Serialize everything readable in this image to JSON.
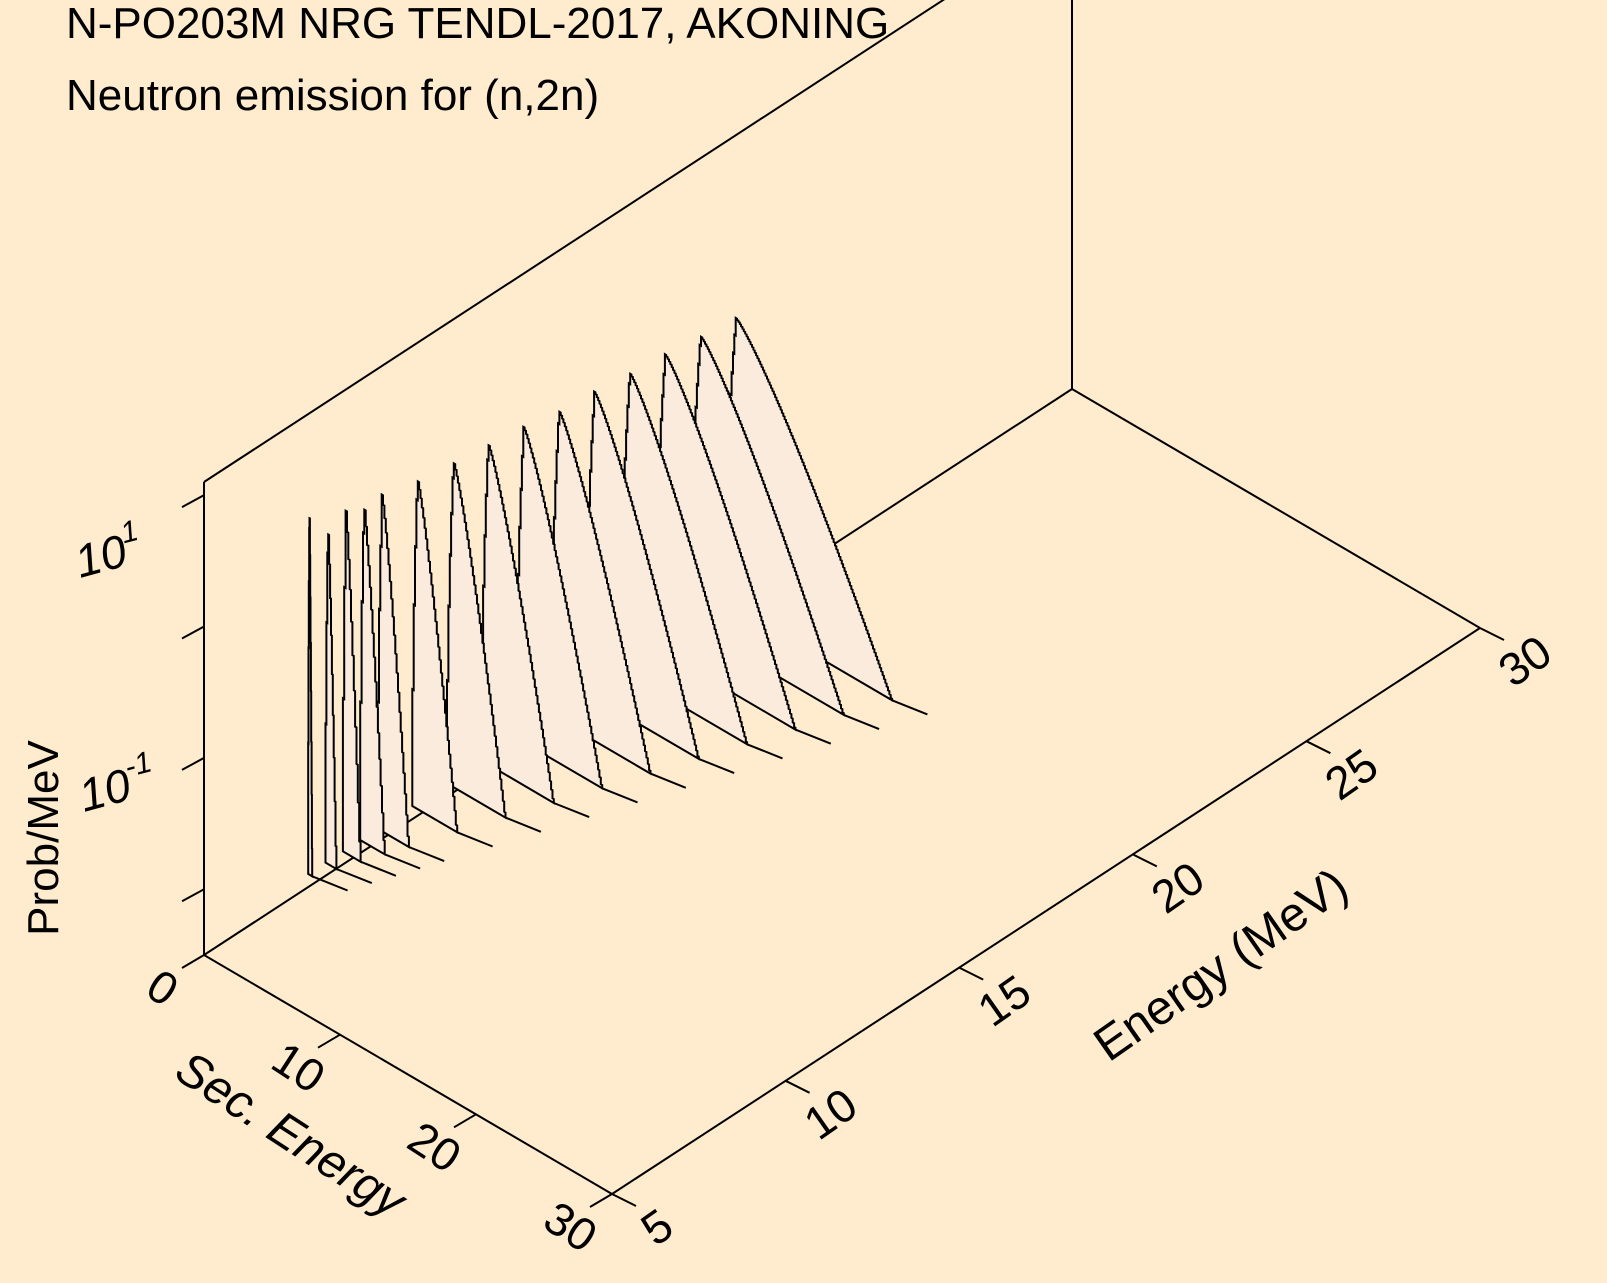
{
  "chart_data": {
    "type": "area",
    "title": "N-PO203M NRG TENDL-2017, AKONING",
    "subtitle": "Neutron emission for (n,2n)",
    "zlabel": "Prob/MeV",
    "zscale": "log",
    "ztick_labels": [
      {
        "base": "10",
        "exp": "1"
      },
      {
        "base": "10",
        "exp": "-1"
      }
    ],
    "xlabel": "Sec. Energy",
    "xlim": [
      0,
      30
    ],
    "xticks": [
      "0",
      "10",
      "20",
      "30"
    ],
    "ylabel": "Energy (MeV)",
    "ylim": [
      5,
      30
    ],
    "yticks": [
      "5",
      "10",
      "15",
      "20",
      "25",
      "30"
    ],
    "grid": false,
    "colors": {
      "background": "#ffebcd",
      "fill": "#faebdc",
      "line": "#000000"
    },
    "series": [
      {
        "incident_energy": 8.0,
        "peak_secondary_energy": 0.1,
        "peak_prob_per_mev": 2.6,
        "max_secondary_energy": 0.3
      },
      {
        "incident_energy": 8.5,
        "peak_secondary_energy": 0.2,
        "peak_prob_per_mev": 1.55,
        "max_secondary_energy": 0.8
      },
      {
        "incident_energy": 9.0,
        "peak_secondary_energy": 0.25,
        "peak_prob_per_mev": 1.6,
        "max_secondary_energy": 1.3
      },
      {
        "incident_energy": 9.5,
        "peak_secondary_energy": 0.3,
        "peak_prob_per_mev": 1.5,
        "max_secondary_energy": 1.8
      },
      {
        "incident_energy": 10.0,
        "peak_secondary_energy": 0.35,
        "peak_prob_per_mev": 1.45,
        "max_secondary_energy": 2.3
      },
      {
        "incident_energy": 11.0,
        "peak_secondary_energy": 0.4,
        "peak_prob_per_mev": 1.3,
        "max_secondary_energy": 3.3
      },
      {
        "incident_energy": 12.0,
        "peak_secondary_energy": 0.5,
        "peak_prob_per_mev": 1.2,
        "max_secondary_energy": 4.3
      },
      {
        "incident_energy": 13.0,
        "peak_secondary_energy": 0.5,
        "peak_prob_per_mev": 1.1,
        "max_secondary_energy": 5.3
      },
      {
        "incident_energy": 14.0,
        "peak_secondary_energy": 0.55,
        "peak_prob_per_mev": 1.0,
        "max_secondary_energy": 6.3
      },
      {
        "incident_energy": 15.0,
        "peak_secondary_energy": 0.6,
        "peak_prob_per_mev": 0.9,
        "max_secondary_energy": 7.3
      },
      {
        "incident_energy": 16.0,
        "peak_secondary_energy": 0.65,
        "peak_prob_per_mev": 0.85,
        "max_secondary_energy": 8.3
      },
      {
        "incident_energy": 17.0,
        "peak_secondary_energy": 0.7,
        "peak_prob_per_mev": 0.8,
        "max_secondary_energy": 9.3
      },
      {
        "incident_energy": 18.0,
        "peak_secondary_energy": 0.75,
        "peak_prob_per_mev": 0.75,
        "max_secondary_energy": 10.3
      },
      {
        "incident_energy": 19.0,
        "peak_secondary_energy": 0.8,
        "peak_prob_per_mev": 0.7,
        "max_secondary_energy": 11.3
      },
      {
        "incident_energy": 20.0,
        "peak_secondary_energy": 0.85,
        "peak_prob_per_mev": 0.65,
        "max_secondary_energy": 12.3
      }
    ]
  }
}
